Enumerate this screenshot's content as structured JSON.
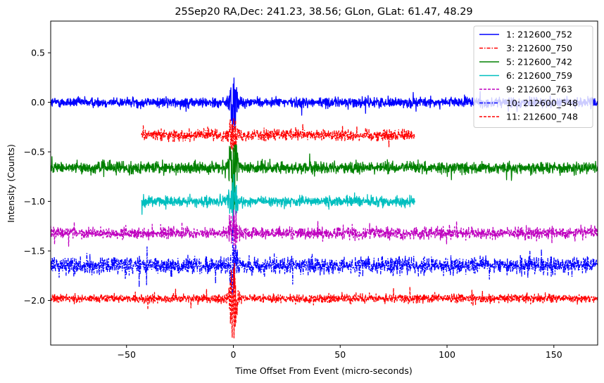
{
  "chart_data": {
    "type": "line",
    "title": "25Sep20 RA,Dec:  241.23,  38.56; GLon, GLat:   61.47,  48.29",
    "xlabel": "Time Offset From Event (micro-seconds)",
    "ylabel": "Intensity (Counts)",
    "xlim": [
      -85.5,
      170.5
    ],
    "ylim": [
      -2.45,
      0.82
    ],
    "xticks": [
      -50,
      0,
      50,
      100,
      150
    ],
    "xtick_labels": [
      "−50",
      "0",
      "50",
      "100",
      "150"
    ],
    "yticks": [
      0.5,
      0.0,
      -0.5,
      -1.0,
      -1.5,
      -2.0
    ],
    "ytick_labels": [
      "0.5",
      "0.0",
      "−0.5",
      "−1.0",
      "−1.5",
      "−2.0"
    ],
    "legend_position": "upper-right",
    "series": [
      {
        "name": " 1: 212600_752",
        "color": "#0000ff",
        "dash": "solid",
        "offset": 0.0,
        "x_range": [
          -85.5,
          170.5
        ],
        "noise": 0.035,
        "spike": 0.32
      },
      {
        "name": " 3: 212600_750",
        "color": "#ff0000",
        "dash": "dashdot",
        "offset": -0.33,
        "x_range": [
          -43,
          85
        ],
        "noise": 0.04,
        "spike": 0.2
      },
      {
        "name": " 5: 212600_742",
        "color": "#008000",
        "dash": "solid",
        "offset": -0.66,
        "x_range": [
          -85.5,
          170.5
        ],
        "noise": 0.04,
        "spike": 0.45
      },
      {
        "name": " 6: 212600_759",
        "color": "#00bfbf",
        "dash": "solid",
        "offset": -1.0,
        "x_range": [
          -43,
          85
        ],
        "noise": 0.035,
        "spike": 0.28
      },
      {
        "name": " 9: 212600_763",
        "color": "#bf00bf",
        "dash": "dashed",
        "offset": -1.32,
        "x_range": [
          -85.5,
          170.5
        ],
        "noise": 0.04,
        "spike": 0.3
      },
      {
        "name": "10: 212600_548",
        "color": "#0000ff",
        "dash": "dashdot",
        "offset": -1.65,
        "x_range": [
          -85.5,
          170.5
        ],
        "noise": 0.06,
        "spike": 0.35
      },
      {
        "name": "11: 212600_748",
        "color": "#ff0000",
        "dash": "dashed",
        "offset": -1.98,
        "x_range": [
          -85.5,
          170.5
        ],
        "noise": 0.03,
        "spike": 0.4
      }
    ]
  }
}
